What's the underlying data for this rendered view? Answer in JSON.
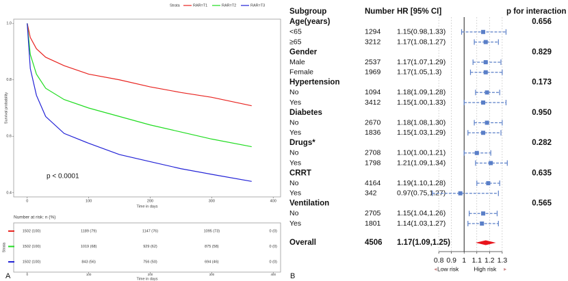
{
  "panel_labels": [
    "A",
    "B"
  ],
  "chart_data": [
    {
      "type": "line",
      "legend_title": "Strata",
      "ylabel": "Survival probability",
      "xlabel": "Time in days",
      "annotation": "p < 0.0001",
      "x": [
        0,
        5,
        15,
        30,
        60,
        100,
        150,
        200,
        250,
        300,
        365
      ],
      "series": [
        {
          "name": "RAR=T1",
          "color": "#e8231f",
          "values": [
            1,
            0.95,
            0.91,
            0.88,
            0.85,
            0.82,
            0.8,
            0.775,
            0.755,
            0.738,
            0.708
          ]
        },
        {
          "name": "RAR=T2",
          "color": "#1fdc1f",
          "values": [
            1,
            0.89,
            0.82,
            0.77,
            0.73,
            0.7,
            0.67,
            0.64,
            0.615,
            0.59,
            0.563
          ]
        },
        {
          "name": "RAR=T3",
          "color": "#2121d6",
          "values": [
            1,
            0.84,
            0.745,
            0.67,
            0.61,
            0.575,
            0.535,
            0.51,
            0.485,
            0.465,
            0.44
          ]
        }
      ],
      "xlim": [
        -22,
        412
      ],
      "xticks": [
        0,
        100,
        200,
        300,
        400
      ],
      "ylim": [
        0.385,
        1.015
      ],
      "yticks": [
        {
          "value": 1,
          "label": "1.0"
        },
        0.8,
        0.6,
        0.4
      ]
    },
    {
      "type": "forest",
      "headers": [
        "Subgroup",
        "Number",
        "HR [95% CI]",
        "p for interaction"
      ],
      "groups": [
        {
          "name": "Age(years)",
          "p": "0.656",
          "rows": [
            {
              "label": "<65",
              "n": 1294,
              "hr_text": "1.15(0.98,1.33)",
              "hr": 1.15,
              "lo": 0.98,
              "hi": 1.33
            },
            {
              "label": "≥65",
              "n": 3212,
              "hr_text": "1.17(1.08,1.27)",
              "hr": 1.17,
              "lo": 1.08,
              "hi": 1.27
            }
          ]
        },
        {
          "name": "Gender",
          "p": "0.829",
          "rows": [
            {
              "label": "Male",
              "n": 2537,
              "hr_text": "1.17(1.07,1.29)",
              "hr": 1.17,
              "lo": 1.07,
              "hi": 1.29
            },
            {
              "label": "Female",
              "n": 1969,
              "hr_text": "1.17(1.05,1.3)",
              "hr": 1.17,
              "lo": 1.05,
              "hi": 1.3
            }
          ]
        },
        {
          "name": "Hypertension",
          "p": "0.173",
          "rows": [
            {
              "label": "No",
              "n": 1094,
              "hr_text": "1.18(1.09,1.28)",
              "hr": 1.18,
              "lo": 1.09,
              "hi": 1.28
            },
            {
              "label": "Yes",
              "n": 3412,
              "hr_text": "1.15(1.00,1.33)",
              "hr": 1.15,
              "lo": 1.0,
              "hi": 1.33
            }
          ]
        },
        {
          "name": "Diabetes",
          "p": "0.950",
          "rows": [
            {
              "label": "No",
              "n": 2670,
              "hr_text": "1.18(1.08,1.30)",
              "hr": 1.18,
              "lo": 1.08,
              "hi": 1.3
            },
            {
              "label": "Yes",
              "n": 1836,
              "hr_text": "1.15(1.03,1.29)",
              "hr": 1.15,
              "lo": 1.03,
              "hi": 1.29
            }
          ]
        },
        {
          "name": "Drugs*",
          "p": "0.282",
          "rows": [
            {
              "label": "No",
              "n": 2708,
              "hr_text": "1.10(1.00,1.21)",
              "hr": 1.1,
              "lo": 1.0,
              "hi": 1.21
            },
            {
              "label": "Yes",
              "n": 1798,
              "hr_text": "1.21(1.09,1.34)",
              "hr": 1.21,
              "lo": 1.09,
              "hi": 1.34
            }
          ]
        },
        {
          "name": "CRRT",
          "p": "0.635",
          "rows": [
            {
              "label": "No",
              "n": 4164,
              "hr_text": "1.19(1.10,1.28)",
              "hr": 1.19,
              "lo": 1.1,
              "hi": 1.28
            },
            {
              "label": "Yes",
              "n": 342,
              "hr_text": "0.97(0.75,1.27)",
              "hr": 0.97,
              "lo": 0.75,
              "hi": 1.27
            }
          ]
        },
        {
          "name": "Ventilation",
          "p": "0.565",
          "rows": [
            {
              "label": "No",
              "n": 2705,
              "hr_text": "1.15(1.04,1.26)",
              "hr": 1.15,
              "lo": 1.04,
              "hi": 1.26
            },
            {
              "label": "Yes",
              "n": 1801,
              "hr_text": "1.14(1.03,1.27)",
              "hr": 1.14,
              "lo": 1.03,
              "hi": 1.27
            }
          ]
        }
      ],
      "overall": {
        "label": "Overall",
        "n": 4506,
        "hr_text": "1.17(1.09,1.25)",
        "hr": 1.17,
        "lo": 1.09,
        "hi": 1.25
      },
      "xlim": [
        0.74,
        1.36
      ],
      "xticks": [
        0.8,
        0.9,
        1,
        1.1,
        1.2,
        1.3
      ],
      "ref": 1,
      "left_label": "Low risk",
      "right_label": "High risk",
      "color": "#5a7fc8",
      "overall_color": "#e8141c"
    }
  ],
  "risk_table": {
    "title": "Number at risk: n (%)",
    "ylabel": "Strata",
    "xlabel": "Time in days",
    "rows": [
      [
        "1502 (100)",
        "1189 (79)",
        "1147 (76)",
        "1095 (73)",
        "0 (0)"
      ],
      [
        "1502 (100)",
        "1019 (68)",
        "929 (62)",
        "875 (58)",
        "0 (0)"
      ],
      [
        "1502 (100)",
        "843 (56)",
        "756 (50)",
        "694 (46)",
        "0 (0)"
      ]
    ]
  }
}
